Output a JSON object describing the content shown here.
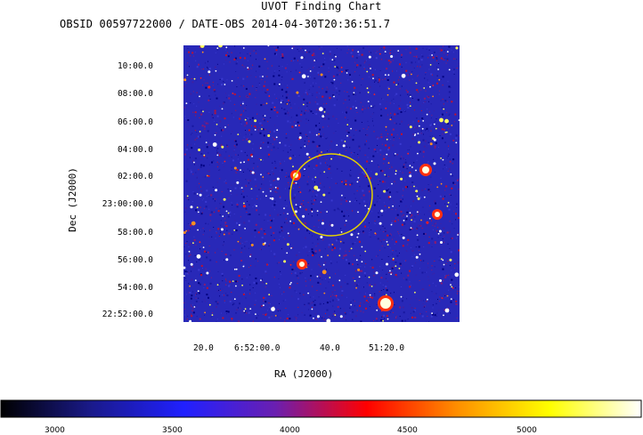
{
  "chart_data": {
    "type": "heatmap",
    "title": "UVOT Finding Chart",
    "subtitle": "OBSID 00597722000 / DATE-OBS 2014-04-30T20:36:51.7",
    "ylabel": "Dec (J2000)",
    "xlabel": "RA (J2000)",
    "dec_ticks": [
      "10:00.0",
      "08:00.0",
      "06:00.0",
      "04:00.0",
      "02:00.0",
      "23:00:00.0",
      "58:00.0",
      "56:00.0",
      "54:00.0",
      "22:52:00.0"
    ],
    "ra_ticks": [
      "20.0",
      "6:52:00.0",
      "40.0",
      "51:20.0"
    ],
    "colorbar": {
      "ticks": [
        "3000",
        "3500",
        "4000",
        "4500",
        "5000"
      ],
      "colors": [
        "#000000",
        "#1a1a8c",
        "#2020ff",
        "#6a1fb0",
        "#ff0000",
        "#ff9000",
        "#ffff00",
        "#ffffff"
      ]
    },
    "circle_color": "#e6d200",
    "background_color": "#2828b8"
  }
}
